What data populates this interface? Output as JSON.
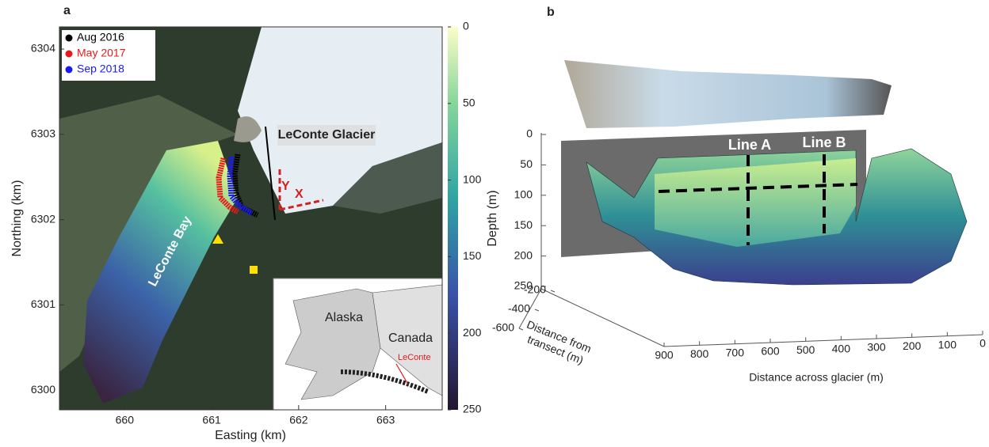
{
  "panel_a": {
    "label": "a",
    "xlabel": "Easting (km)",
    "ylabel": "Northing (km)",
    "xlim": [
      659.25,
      663.65
    ],
    "xticks": [
      660,
      661,
      662,
      663
    ],
    "ylim": [
      6299.77,
      6304.26
    ],
    "yticks": [
      6300,
      6301,
      6302,
      6303,
      6304
    ],
    "legend": [
      {
        "name": "Aug 2016",
        "color": "#000000"
      },
      {
        "name": "May 2017",
        "color": "#e8191b"
      },
      {
        "name": "Sep 2018",
        "color": "#1a1aef"
      }
    ],
    "annotations": {
      "glacier": "LeConte Glacier",
      "bay": "LeConte Bay",
      "y": "Y",
      "x": "X"
    },
    "colorbar": {
      "label": "Depth (m)",
      "lim": [
        0,
        250
      ],
      "ticks": [
        0,
        50,
        100,
        150,
        200,
        250
      ]
    },
    "inset": {
      "alaska": "Alaska",
      "canada": "Canada",
      "site": "LeConte"
    }
  },
  "panel_b": {
    "label": "b",
    "xlabel": "Distance across glacier (m)",
    "xlim": [
      900,
      0
    ],
    "xticks": [
      900,
      800,
      700,
      600,
      500,
      400,
      300,
      200,
      100,
      0
    ],
    "ylabel": [
      "Distance from",
      "transect (m)"
    ],
    "yticks": [
      -200,
      -400,
      -600
    ],
    "zlim": [
      0,
      250
    ],
    "zticks": [
      0,
      50,
      100,
      150,
      200,
      250
    ],
    "annotations": {
      "line_a": "Line A",
      "line_b": "Line B"
    }
  }
}
